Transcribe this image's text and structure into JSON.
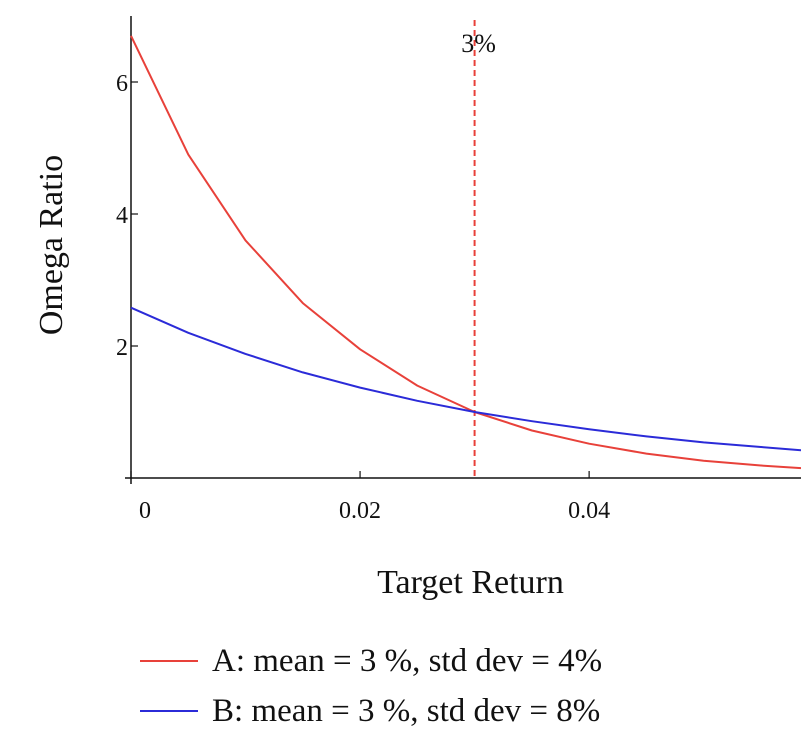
{
  "chart_data": {
    "type": "line",
    "xlabel": "Target Return",
    "ylabel": "Omega Ratio",
    "xlim": [
      0,
      0.0585
    ],
    "ylim": [
      0,
      7
    ],
    "xticks": [
      0,
      0.02,
      0.04
    ],
    "xtick_labels": [
      "0",
      "0.02",
      "0.04"
    ],
    "yticks": [
      2,
      4,
      6
    ],
    "ytick_labels": [
      "2",
      "4",
      "6"
    ],
    "grid": false,
    "legend_position": "bottom",
    "vline": {
      "x": 0.03,
      "label": "3%",
      "color": "#e8413a",
      "style": "dashed"
    },
    "series": [
      {
        "name": "A: mean = 3 %, std dev = 4%",
        "color": "#e8413a",
        "x": [
          0,
          0.005,
          0.01,
          0.015,
          0.02,
          0.025,
          0.03,
          0.035,
          0.04,
          0.045,
          0.05,
          0.055,
          0.0585
        ],
        "y": [
          6.7,
          4.9,
          3.6,
          2.65,
          1.95,
          1.4,
          1.0,
          0.72,
          0.52,
          0.37,
          0.26,
          0.19,
          0.15
        ]
      },
      {
        "name": "B: mean = 3 %, std dev = 8%",
        "color": "#2b2bd8",
        "x": [
          0,
          0.005,
          0.01,
          0.015,
          0.02,
          0.025,
          0.03,
          0.035,
          0.04,
          0.045,
          0.05,
          0.055,
          0.0585
        ],
        "y": [
          2.58,
          2.2,
          1.88,
          1.6,
          1.37,
          1.17,
          1.0,
          0.86,
          0.74,
          0.63,
          0.54,
          0.47,
          0.42
        ]
      }
    ]
  }
}
